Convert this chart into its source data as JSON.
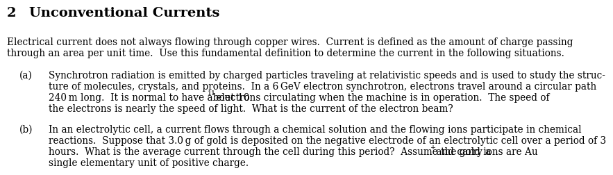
{
  "background_color": "#ffffff",
  "title_num": "2",
  "title_text": "Unconventional Currents",
  "title_fontsize": 14,
  "body_fontsize": 9.8,
  "font_family": "DejaVu Serif",
  "intro_line1": "Electrical current does not always flowing through copper wires.  Current is defined as the amount of charge passing",
  "intro_line2": "through an area per unit time.  Use this fundamental definition to determine the current in the following situations.",
  "part_a_label": "(a)",
  "part_a_line1": "Synchrotron radiation is emitted by charged particles traveling at relativistic speeds and is used to study the struc-",
  "part_a_line2": "ture of molecules, crystals, and proteins.  In a 6 GeV electron synchrotron, electrons travel around a circular path",
  "part_a_line3": "240 m long.  It is normal to have about 10",
  "part_a_sup": "11",
  "part_a_line3b": " electrons circulating when the machine is in operation.  The speed of",
  "part_a_line4": "the electrons is nearly the speed of light.  What is the current of the electron beam?",
  "part_b_label": "(b)",
  "part_b_line1": "In an electrolytic cell, a current flows through a chemical solution and the flowing ions participate in chemical",
  "part_b_line2": "reactions.  Suppose that 3.0 g of gold is deposited on the negative electrode of an electrolytic cell over a period of 3",
  "part_b_line3": "hours.  What is the average current through the cell during this period?  Assume the gold ions are Au",
  "part_b_sup": "+",
  "part_b_line3b": " and carry a",
  "part_b_line4": "single elementary unit of positive charge."
}
